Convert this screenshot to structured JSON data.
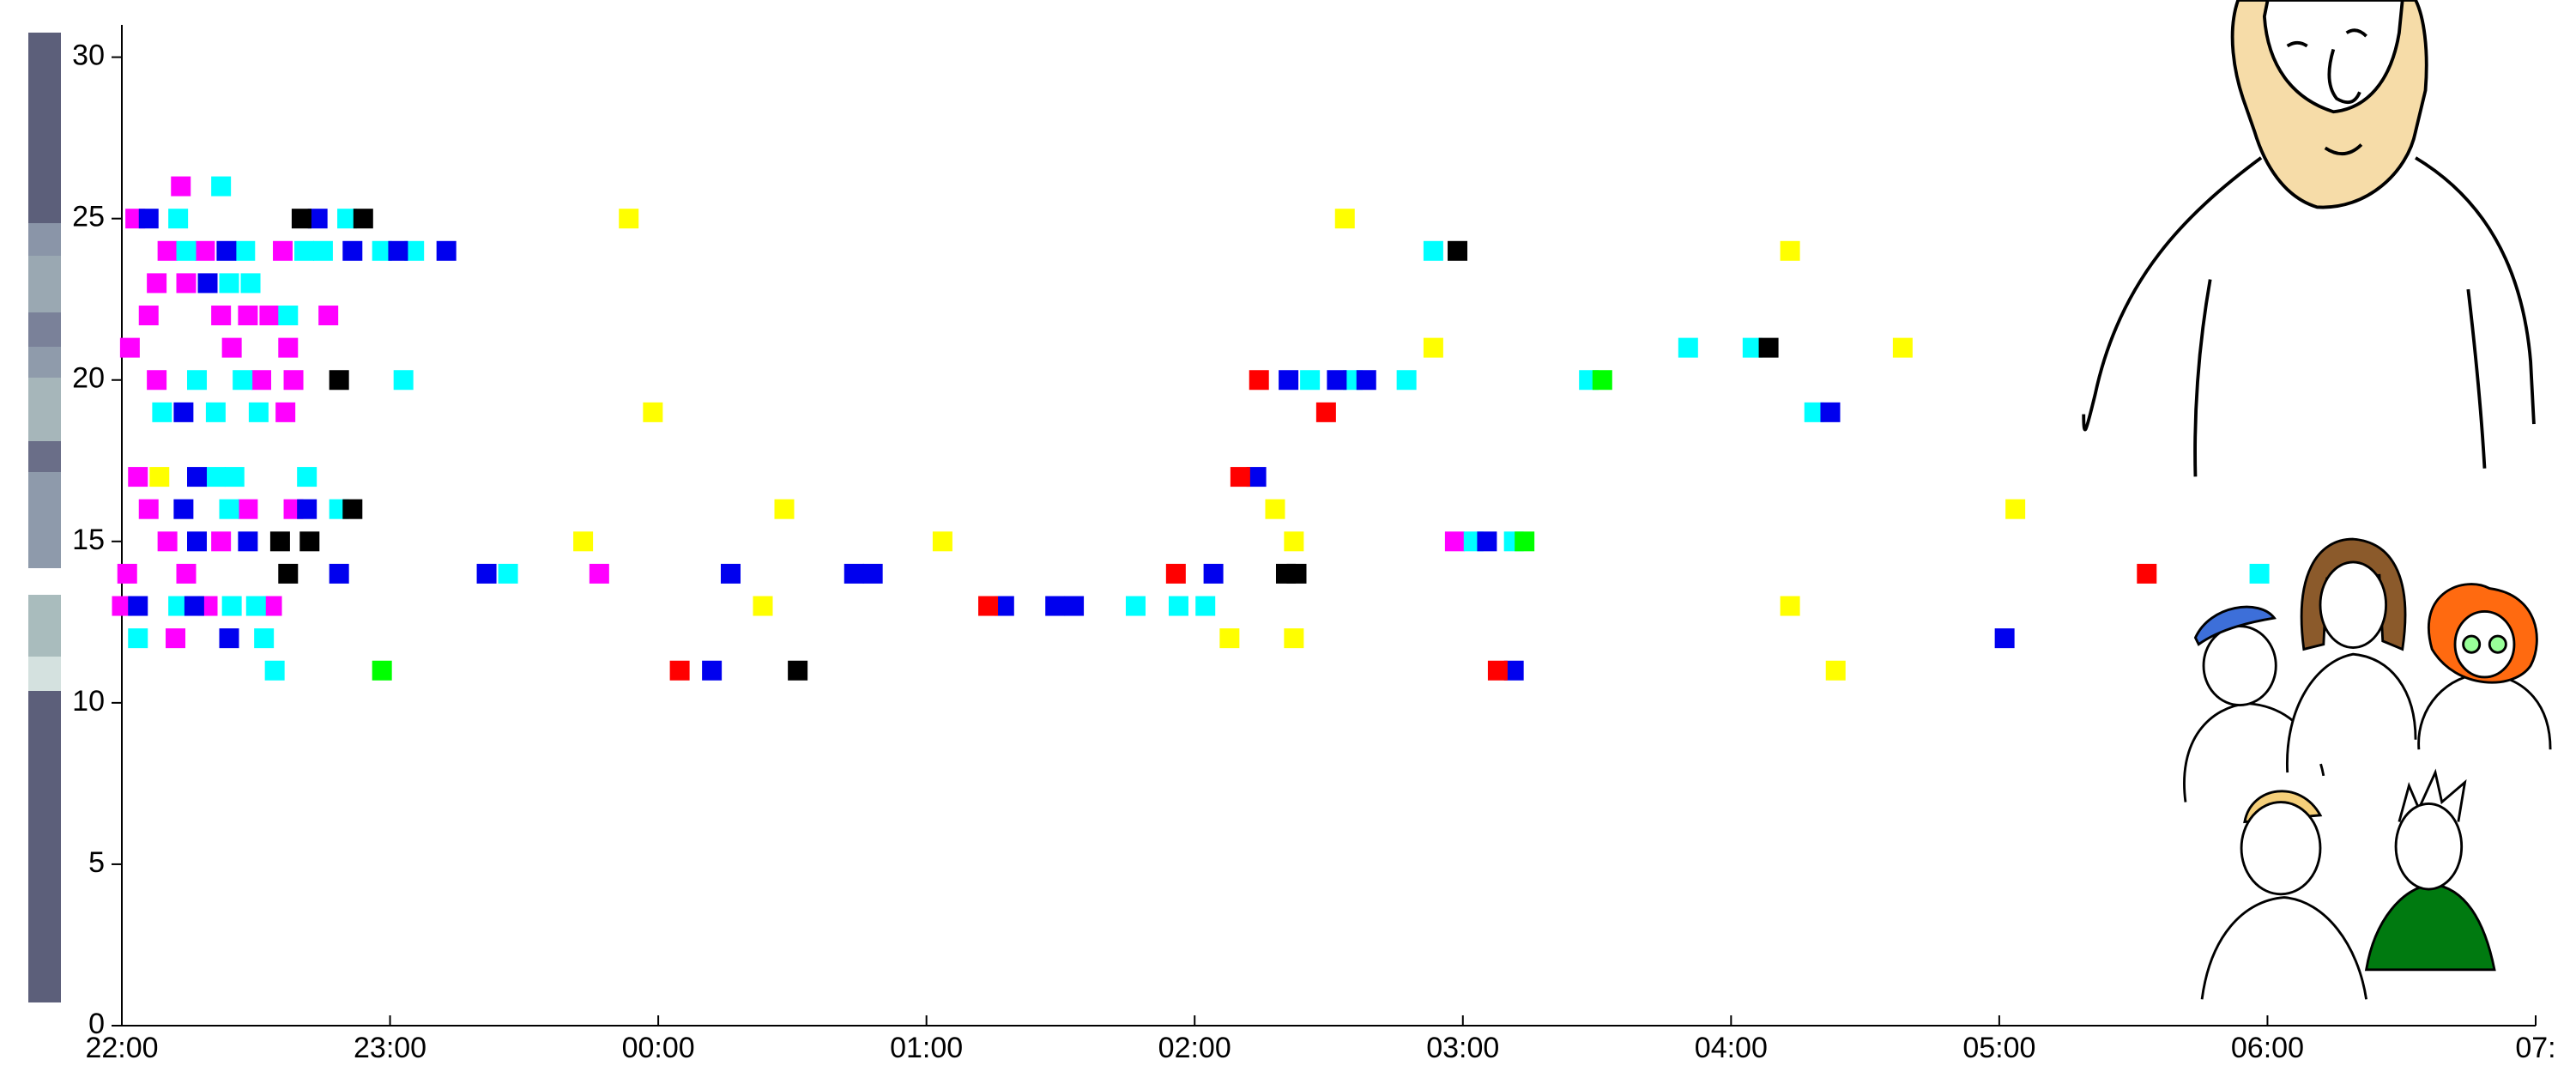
{
  "chart_data": {
    "type": "scatter",
    "xlim": [
      0,
      9
    ],
    "ylim": [
      0,
      31
    ],
    "xticks": [
      {
        "value": 0,
        "label": "22:00"
      },
      {
        "value": 1,
        "label": "23:00"
      },
      {
        "value": 2,
        "label": "00:00"
      },
      {
        "value": 3,
        "label": "01:00"
      },
      {
        "value": 4,
        "label": "02:00"
      },
      {
        "value": 5,
        "label": "03:00"
      },
      {
        "value": 6,
        "label": "04:00"
      },
      {
        "value": 7,
        "label": "05:00"
      },
      {
        "value": 8,
        "label": "06:00"
      },
      {
        "value": 9,
        "label": "07:"
      }
    ],
    "yticks": [
      0,
      5,
      10,
      15,
      20,
      25,
      30
    ],
    "series": [
      {
        "color": "#ff00ff",
        "x": [
          0.22,
          0.05,
          0.17,
          0.31,
          0.6,
          0.13,
          0.24,
          0.1,
          0.37,
          0.47,
          0.55,
          0.77,
          0.03,
          0.41,
          0.62,
          0.13,
          0.52,
          0.64,
          0.61,
          0.06,
          0.1,
          0.47,
          0.64,
          0.17,
          0.37,
          4.97,
          0.02,
          0.24,
          1.78,
          0,
          0.32,
          0.56,
          0.2
        ],
        "values": [
          26,
          25,
          24,
          24,
          24,
          23,
          23,
          22,
          22,
          22,
          22,
          22,
          21,
          21,
          21,
          20,
          20,
          20,
          19,
          17,
          16,
          16,
          16,
          15,
          15,
          15,
          14,
          14,
          14,
          13,
          13,
          13,
          12
        ]
      },
      {
        "color": "#00ffff",
        "x": [
          0.37,
          0.21,
          0.84,
          0.24,
          0.46,
          0.68,
          0.75,
          0.97,
          1.09,
          4.89,
          0.4,
          0.48,
          0.62,
          5.84,
          6.08,
          0.28,
          0.45,
          1.05,
          4.43,
          4.59,
          4.79,
          5.47,
          0.15,
          0.35,
          0.51,
          6.31,
          0.35,
          0.42,
          0.69,
          0.4,
          0.81,
          5.04,
          5.19,
          1.44,
          7.97,
          0.21,
          0.41,
          0.5,
          3.78,
          3.94,
          4.04,
          0.06,
          0.53,
          0.57
        ],
        "values": [
          26,
          25,
          25,
          24,
          24,
          24,
          24,
          24,
          24,
          24,
          23,
          23,
          22,
          21,
          21,
          20,
          20,
          20,
          20,
          20,
          20,
          20,
          19,
          19,
          19,
          19,
          17,
          17,
          17,
          16,
          16,
          15,
          15,
          14,
          14,
          13,
          13,
          13,
          13,
          13,
          13,
          12,
          12,
          11
        ]
      },
      {
        "color": "#0000ee",
        "x": [
          0.1,
          0.73,
          0.39,
          0.86,
          1.03,
          1.21,
          0.32,
          4.35,
          4.53,
          4.64,
          0.23,
          6.37,
          0.28,
          4.23,
          0.23,
          0.69,
          0.28,
          0.47,
          5.09,
          0.81,
          1.36,
          2.27,
          2.73,
          2.8,
          4.07,
          0.06,
          0.27,
          3.29,
          3.48,
          3.55,
          0.4,
          7.02,
          2.2,
          5.19
        ],
        "values": [
          25,
          25,
          24,
          24,
          24,
          24,
          23,
          20,
          20,
          20,
          19,
          19,
          17,
          17,
          16,
          16,
          15,
          15,
          15,
          14,
          14,
          14,
          14,
          14,
          14,
          13,
          13,
          13,
          13,
          13,
          12,
          12,
          11,
          11
        ]
      },
      {
        "color": "#000000",
        "x": [
          0.67,
          0.9,
          4.98,
          6.14,
          0.81,
          0.86,
          0.59,
          0.7,
          0.62,
          4.34,
          4.38,
          2.52
        ],
        "values": [
          25,
          25,
          24,
          21,
          20,
          16,
          15,
          15,
          14,
          14,
          14,
          11
        ]
      },
      {
        "color": "#ffff00",
        "x": [
          1.89,
          4.56,
          6.22,
          4.89,
          6.64,
          1.98,
          0.14,
          2.47,
          4.3,
          7.06,
          1.72,
          3.06,
          4.37,
          2.39,
          6.22,
          4.13,
          4.37,
          6.39
        ],
        "values": [
          25,
          25,
          24,
          21,
          21,
          19,
          17,
          16,
          16,
          16,
          15,
          15,
          15,
          13,
          13,
          12,
          12,
          11
        ]
      },
      {
        "color": "#ff0000",
        "x": [
          4.24,
          4.49,
          4.17,
          3.93,
          7.55,
          3.23,
          2.08,
          5.13
        ],
        "values": [
          20,
          19,
          17,
          14,
          14,
          13,
          11,
          11
        ]
      },
      {
        "color": "#00ff00",
        "x": [
          5.52,
          5.23,
          0.97
        ],
        "values": [
          20,
          15,
          11
        ]
      }
    ]
  }
}
